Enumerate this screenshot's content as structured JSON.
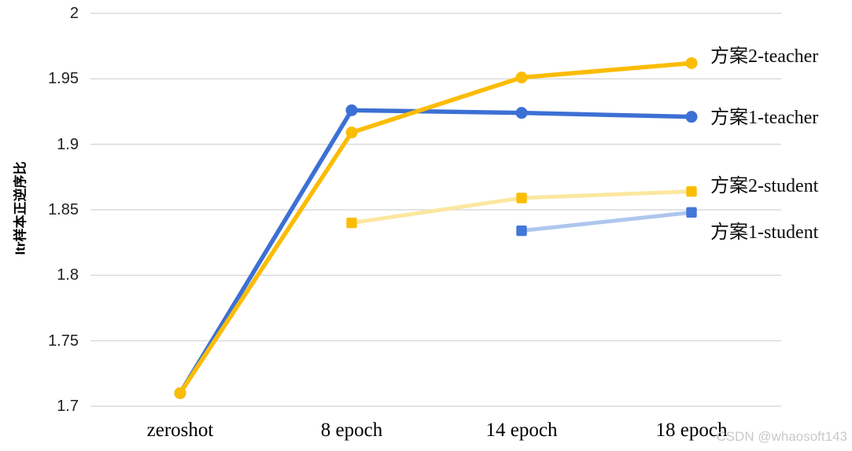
{
  "watermark": "CSDN @whaosoft143",
  "chart_data": {
    "type": "line",
    "title": "",
    "xlabel": "",
    "ylabel": "ltr样本正逆序比",
    "categories": [
      "zeroshot",
      "8 epoch",
      "14 epoch",
      "18 epoch"
    ],
    "y_ticks": [
      1.7,
      1.75,
      1.8,
      1.85,
      1.9,
      1.95,
      2
    ],
    "ylim": [
      1.7,
      2.0
    ],
    "grid": true,
    "gridline_color": "#dadada",
    "legend_position": "right-of-line-ends",
    "label_offsets": [
      -8,
      1,
      -7,
      26
    ],
    "series": [
      {
        "name": "方案2-teacher",
        "marker": "circle",
        "marker_color": "#fbbc05",
        "line_color": "#fbbc05",
        "values": [
          1.71,
          1.909,
          1.951,
          1.962
        ]
      },
      {
        "name": "方案1-teacher",
        "marker": "circle",
        "marker_color": "#3c70d4",
        "line_color": "#3c70d4",
        "values": [
          1.71,
          1.926,
          1.924,
          1.921
        ]
      },
      {
        "name": "方案2-student",
        "marker": "square",
        "marker_color": "#fbbd04",
        "line_color": "#fce79f",
        "values": [
          null,
          1.84,
          1.859,
          1.864
        ]
      },
      {
        "name": "方案1-student",
        "marker": "square",
        "marker_color": "#4377d8",
        "line_color": "#aec6ee",
        "values": [
          null,
          null,
          1.834,
          1.848
        ]
      }
    ]
  }
}
